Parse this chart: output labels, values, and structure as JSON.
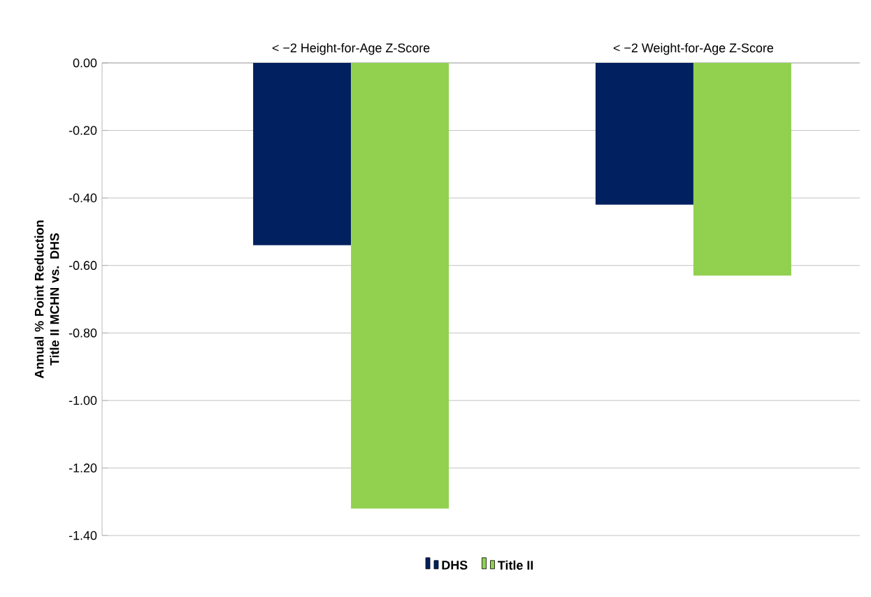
{
  "chart_data": {
    "type": "bar",
    "ylabel": "Annual % Point Reduction Title II MCHN vs. DHS",
    "categories": [
      "< −2 Height-for-Age Z-Score",
      "< −2 Weight-for-Age Z-Score"
    ],
    "series": [
      {
        "name": "DHS",
        "color": "#002060",
        "values": [
          -0.54,
          -0.42
        ]
      },
      {
        "name": "Title II",
        "color": "#92d050",
        "values": [
          -1.32,
          -0.63
        ]
      }
    ],
    "ylim": [
      -1.4,
      0
    ],
    "yticks": [
      {
        "value": 0,
        "label": "0.00"
      },
      {
        "value": -0.2,
        "label": "-0.20"
      },
      {
        "value": -0.4,
        "label": "-0.40"
      },
      {
        "value": -0.6,
        "label": "-0.60"
      },
      {
        "value": -0.8,
        "label": "-0.80"
      },
      {
        "value": -1.0,
        "label": "-1.00"
      },
      {
        "value": -1.2,
        "label": "-1.20"
      },
      {
        "value": -1.4,
        "label": "-1.40"
      }
    ],
    "grid": "y",
    "legend": "bottom"
  }
}
